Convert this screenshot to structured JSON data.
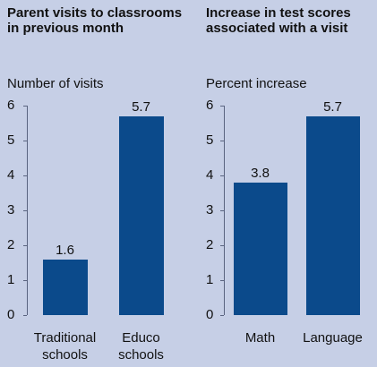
{
  "chart_data": [
    {
      "type": "bar",
      "title": "Parent visits to classrooms in previous month",
      "y_label": "Number of visits",
      "categories": [
        "Traditional schools",
        "Educo schools"
      ],
      "values": [
        1.6,
        5.7
      ],
      "color": "#0b4a8b",
      "ylim": [
        0,
        6
      ],
      "yticks": [
        0,
        1,
        2,
        3,
        4,
        5,
        6
      ]
    },
    {
      "type": "bar",
      "title": "Increase in test scores associated with a visit",
      "y_label": "Percent increase",
      "categories": [
        "Math",
        "Language"
      ],
      "values": [
        3.8,
        5.7
      ],
      "color": "#0b4a8b",
      "ylim": [
        0,
        6
      ],
      "yticks": [
        0,
        1,
        2,
        3,
        4,
        5,
        6
      ]
    }
  ]
}
